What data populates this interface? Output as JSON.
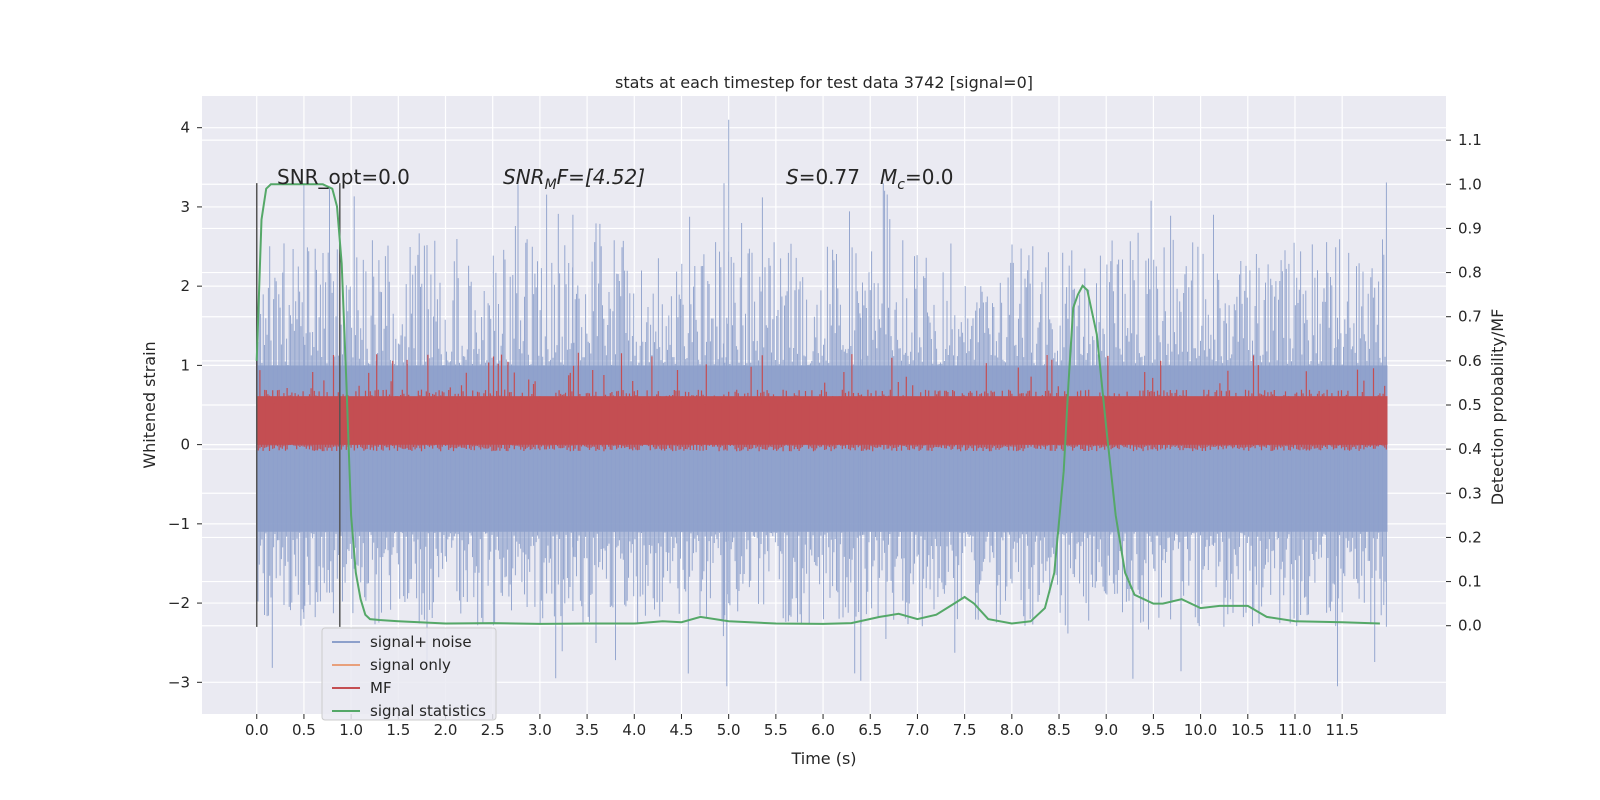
{
  "chart_data": {
    "type": "line",
    "title": "stats at each timestep for test data 3742 [signal=0]",
    "xlabel": "Time (s)",
    "ylabel": "Whitened strain",
    "ylabel_right": "Detection probability/MF",
    "xlim": [
      -0.58,
      12.6
    ],
    "ylim": [
      -3.4,
      4.4
    ],
    "ylim_right": [
      -0.2,
      1.2
    ],
    "x_ticks": [
      "0.0",
      "0.5",
      "1.0",
      "1.5",
      "2.0",
      "2.5",
      "3.0",
      "3.5",
      "4.0",
      "4.5",
      "5.0",
      "5.5",
      "6.0",
      "6.5",
      "7.0",
      "7.5",
      "8.0",
      "8.5",
      "9.0",
      "9.5",
      "10.0",
      "10.5",
      "11.0",
      "11.5"
    ],
    "y_ticks": [
      "−3",
      "−2",
      "−1",
      "0",
      "1",
      "2",
      "3",
      "4"
    ],
    "y_ticks_right": [
      "0.0",
      "0.1",
      "0.2",
      "0.3",
      "0.4",
      "0.5",
      "0.6",
      "0.7",
      "0.8",
      "0.9",
      "1.0",
      "1.1"
    ],
    "grid": true,
    "legend_position": "lower-left",
    "annotations": {
      "snr_opt": "SNR_opt=0.0",
      "snr_mf_prefix": "SNR",
      "snr_mf_sub": "M",
      "snr_mf_suffix": "F=[4.52]",
      "s_label": "S",
      "s_value": "=0.77",
      "mc_label": "M",
      "mc_sub": "c",
      "mc_value": "=0.0"
    },
    "markers_x": [
      0.0,
      0.88
    ],
    "series": [
      {
        "name": "signal+ noise",
        "color": "#8da0cb",
        "axis": "left",
        "envelope": {
          "upper_typical": [
            1.0,
            2.5
          ],
          "lower_typical": [
            -1.0,
            -2.3
          ],
          "max": 4.1,
          "min": -3.1,
          "x_range": [
            0.0,
            11.98
          ]
        }
      },
      {
        "name": "signal only",
        "color": "#e8a07c",
        "axis": "left",
        "values": []
      },
      {
        "name": "MF",
        "color": "#c44e52",
        "axis": "right",
        "band": [
          0.41,
          0.52
        ],
        "max": 0.63,
        "x_range": [
          0.0,
          11.98
        ]
      },
      {
        "name": "signal statistics",
        "color": "#55a868",
        "axis": "right",
        "x": [
          0.0,
          0.05,
          0.1,
          0.15,
          0.2,
          0.3,
          0.5,
          0.7,
          0.8,
          0.85,
          0.9,
          0.95,
          1.0,
          1.05,
          1.1,
          1.15,
          1.2,
          1.3,
          1.5,
          2.0,
          2.5,
          3.0,
          3.5,
          4.0,
          4.3,
          4.5,
          4.7,
          5.0,
          5.5,
          6.0,
          6.3,
          6.6,
          6.8,
          7.0,
          7.2,
          7.35,
          7.5,
          7.6,
          7.75,
          8.0,
          8.2,
          8.35,
          8.45,
          8.55,
          8.6,
          8.65,
          8.7,
          8.75,
          8.8,
          8.9,
          9.0,
          9.1,
          9.2,
          9.3,
          9.5,
          9.6,
          9.8,
          10.0,
          10.2,
          10.5,
          10.7,
          11.0,
          11.5,
          11.9
        ],
        "y": [
          0.6,
          0.92,
          0.99,
          1.0,
          1.0,
          1.0,
          1.0,
          1.0,
          0.99,
          0.95,
          0.82,
          0.55,
          0.25,
          0.12,
          0.06,
          0.025,
          0.015,
          0.013,
          0.01,
          0.005,
          0.006,
          0.004,
          0.005,
          0.005,
          0.01,
          0.008,
          0.02,
          0.01,
          0.005,
          0.004,
          0.006,
          0.02,
          0.027,
          0.015,
          0.025,
          0.045,
          0.065,
          0.05,
          0.015,
          0.005,
          0.01,
          0.04,
          0.12,
          0.35,
          0.55,
          0.72,
          0.75,
          0.77,
          0.76,
          0.66,
          0.45,
          0.25,
          0.12,
          0.07,
          0.05,
          0.05,
          0.06,
          0.04,
          0.045,
          0.045,
          0.02,
          0.01,
          0.008,
          0.005
        ]
      }
    ]
  }
}
